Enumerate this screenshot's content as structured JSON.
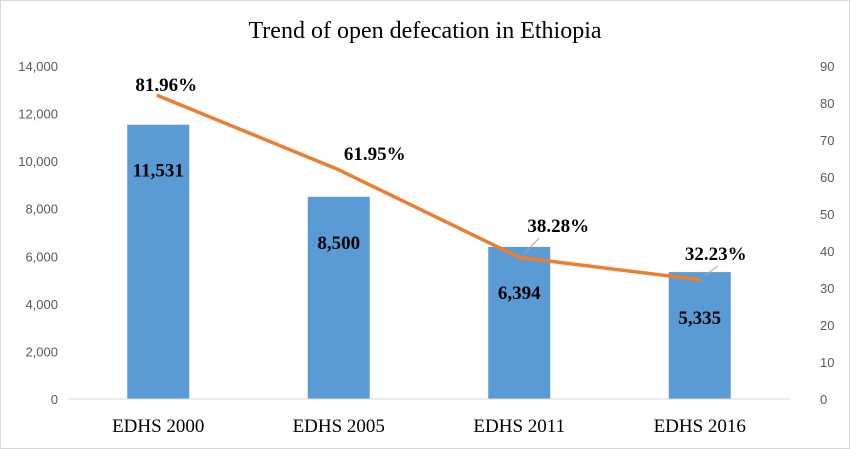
{
  "chart_data": {
    "type": "bar",
    "title": "Trend of open defecation in Ethiopia",
    "categories": [
      "EDHS 2000",
      "EDHS 2005",
      "EDHS 2011",
      "EDHS 2016"
    ],
    "series": [
      {
        "type": "bar",
        "axis": "left",
        "values": [
          11531,
          8500,
          6394,
          5335
        ],
        "labels": [
          "11,531",
          "8,500",
          "6,394",
          "5,335"
        ],
        "color": "#5B9BD5"
      },
      {
        "type": "line",
        "axis": "right",
        "values": [
          81.96,
          61.95,
          38.28,
          32.23
        ],
        "labels": [
          "81.96%",
          "61.95%",
          "38.28%",
          "32.23%"
        ],
        "color": "#ED7D31"
      }
    ],
    "y_left": {
      "min": 0,
      "max": 14000,
      "ticks": [
        "0",
        "2,000",
        "4,000",
        "6,000",
        "8,000",
        "10,000",
        "12,000",
        "14,000"
      ]
    },
    "y_right": {
      "min": 0,
      "max": 90,
      "ticks": [
        "0",
        "10",
        "20",
        "30",
        "40",
        "50",
        "60",
        "70",
        "80",
        "90"
      ]
    },
    "grid": false,
    "legend": "none"
  }
}
